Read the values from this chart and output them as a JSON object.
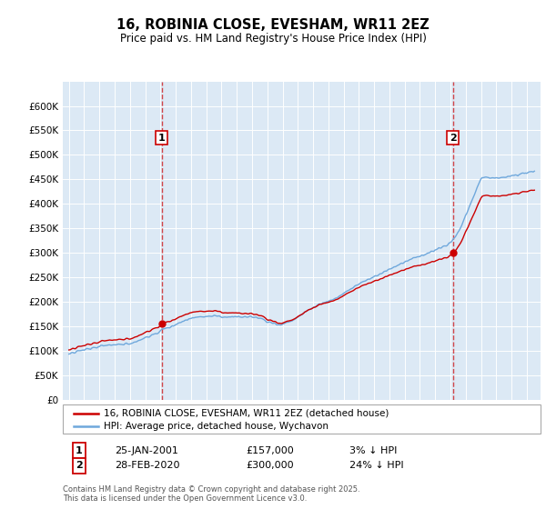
{
  "title": "16, ROBINIA CLOSE, EVESHAM, WR11 2EZ",
  "subtitle": "Price paid vs. HM Land Registry's House Price Index (HPI)",
  "legend_property": "16, ROBINIA CLOSE, EVESHAM, WR11 2EZ (detached house)",
  "legend_hpi": "HPI: Average price, detached house, Wychavon",
  "footnote": "Contains HM Land Registry data © Crown copyright and database right 2025.\nThis data is licensed under the Open Government Licence v3.0.",
  "sale1_label": "1",
  "sale1_date": "25-JAN-2001",
  "sale1_price": "£157,000",
  "sale1_hpi": "3% ↓ HPI",
  "sale2_label": "2",
  "sale2_date": "28-FEB-2020",
  "sale2_price": "£300,000",
  "sale2_hpi": "24% ↓ HPI",
  "property_color": "#cc0000",
  "hpi_color": "#6fa8dc",
  "vline_color": "#cc0000",
  "plot_bg_color": "#dce9f5",
  "background_color": "#ffffff",
  "grid_color": "#ffffff",
  "ylim": [
    0,
    650000
  ],
  "ytick_vals": [
    0,
    50000,
    100000,
    150000,
    200000,
    250000,
    300000,
    350000,
    400000,
    450000,
    500000,
    550000,
    600000
  ],
  "ytick_labels": [
    "£0",
    "£50K",
    "£100K",
    "£150K",
    "£200K",
    "£250K",
    "£300K",
    "£350K",
    "£400K",
    "£450K",
    "£500K",
    "£550K",
    "£600K"
  ],
  "sale1_year": 2001.07,
  "sale2_year": 2020.16,
  "sale1_price_val": 157000,
  "sale2_price_val": 300000,
  "xmin": 1994.6,
  "xmax": 2025.9
}
